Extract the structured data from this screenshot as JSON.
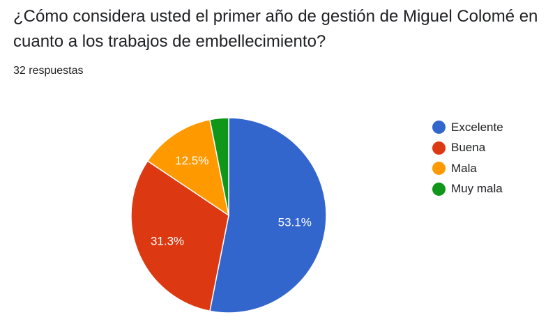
{
  "question": {
    "title": "¿Cómo considera usted el primer año de gestión de Miguel Colomé en cuanto a los trabajos de embellecimiento?",
    "response_count": "32 respuestas"
  },
  "chart_data": {
    "type": "pie",
    "categories": [
      "Excelente",
      "Buena",
      "Mala",
      "Muy mala"
    ],
    "values": [
      53.1,
      31.3,
      12.5,
      3.1
    ],
    "counts": [
      17,
      10,
      4,
      1
    ],
    "data_labels": [
      "53.1%",
      "31.3%",
      "12.5%",
      ""
    ],
    "colors": [
      "#3366cc",
      "#dc3912",
      "#ff9900",
      "#109618"
    ],
    "legend_position": "right",
    "start_angle_deg": 90,
    "direction": "clockwise"
  }
}
